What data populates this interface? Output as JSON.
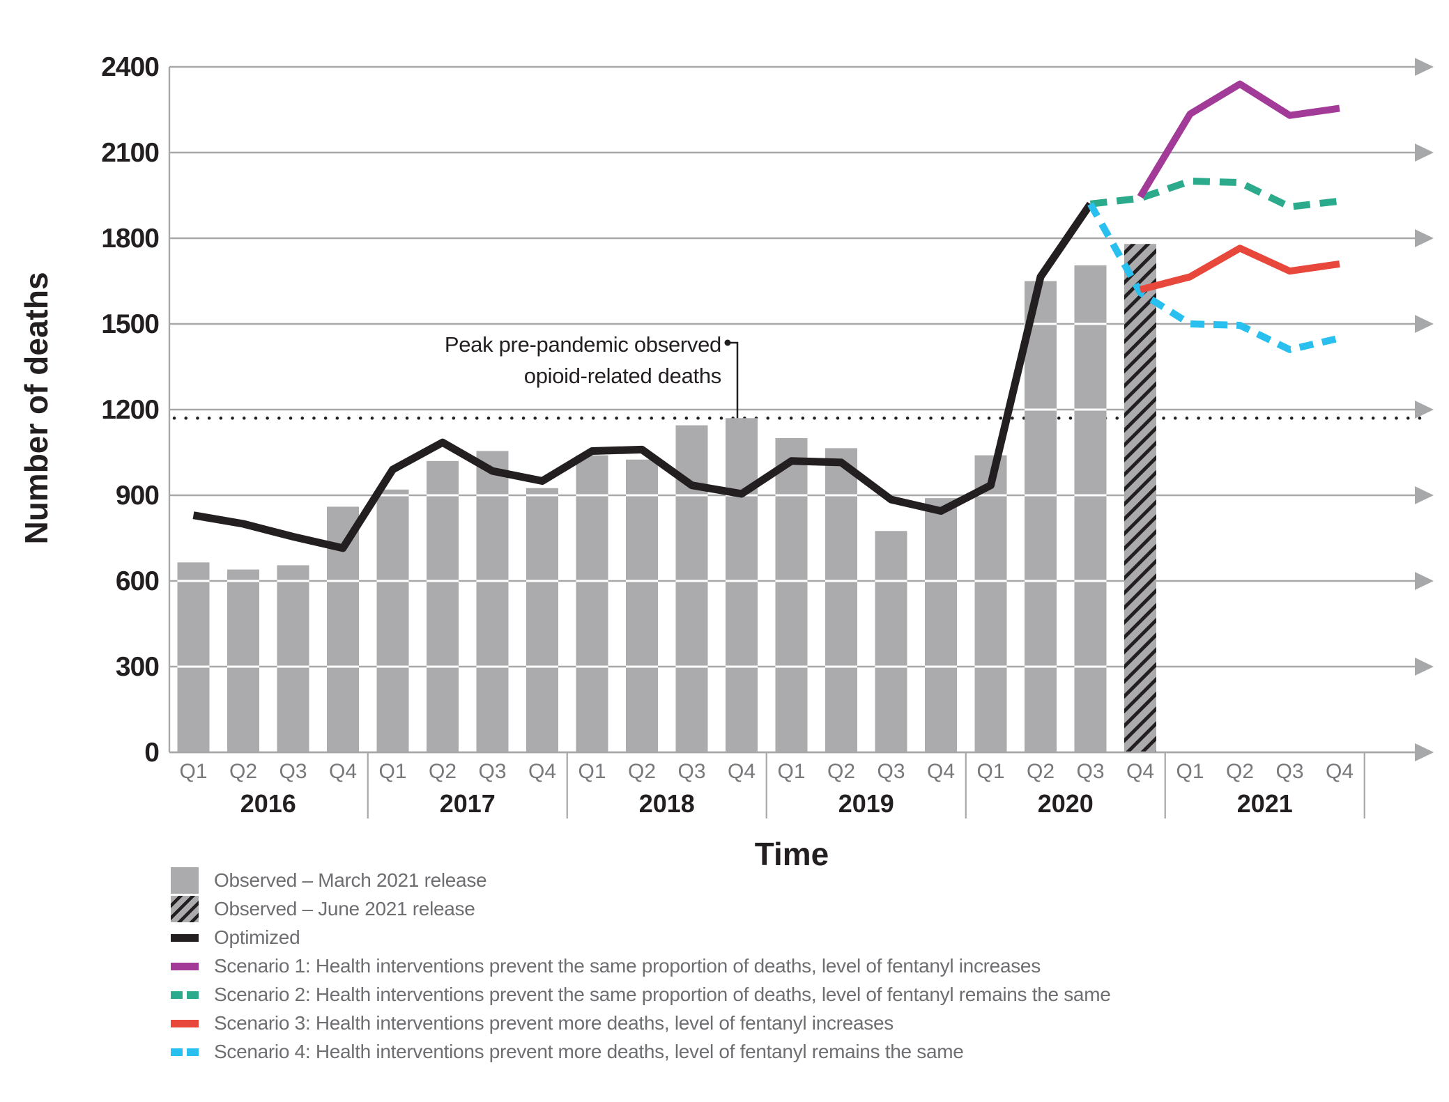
{
  "figure": {
    "y_axis_title": "Number of deaths",
    "x_axis_title": "Time",
    "annotation": {
      "line1": "Peak pre-pandemic observed",
      "line2": "opioid-related deaths"
    },
    "colors": {
      "bar_gray": "#ABABAD",
      "black": "#231F20",
      "purple": "#A23B97",
      "green": "#2BAB8C",
      "red": "#E8473B",
      "cyan": "#29BFEF",
      "grid": "#A7A8AA",
      "tick_gray": "#77787B",
      "legend_text": "#6D6E71",
      "white": "#FFFFFF"
    }
  },
  "chart_data": {
    "type": "combo-bar-line",
    "x_axis": {
      "years": [
        "2016",
        "2017",
        "2018",
        "2019",
        "2020",
        "2021"
      ],
      "quarters_per_year": [
        "Q1",
        "Q2",
        "Q3",
        "Q4"
      ]
    },
    "y_axis": {
      "label": "Number of deaths",
      "ylim": [
        0,
        2400
      ],
      "tick_step": 300,
      "ticks": [
        0,
        300,
        600,
        900,
        1200,
        1500,
        1800,
        2100,
        2400
      ],
      "grid": "horizontal gridlines ending in right-pointing arrows"
    },
    "reference_line": {
      "value": 1170,
      "style": "dotted",
      "meaning": "Peak pre-pandemic observed opioid-related deaths",
      "points_to_quarter": "2018 Q4"
    },
    "series": [
      {
        "name": "Observed - March 2021 release",
        "type": "bar",
        "color_key": "bar_gray",
        "start_quarter": "2016 Q1",
        "values": [
          665,
          640,
          655,
          860,
          920,
          1020,
          1055,
          925,
          1040,
          1025,
          1145,
          1170,
          1100,
          1065,
          775,
          890,
          1040,
          1650,
          1705
        ]
      },
      {
        "name": "Observed - June 2021 release",
        "type": "bar-hatched",
        "color_key": "bar_gray",
        "start_quarter": "2020 Q4",
        "values": [
          1780
        ]
      },
      {
        "name": "Optimized",
        "type": "line",
        "color_key": "black",
        "start_quarter": "2016 Q1",
        "values": [
          830,
          800,
          755,
          715,
          990,
          1085,
          985,
          950,
          1055,
          1060,
          935,
          905,
          1020,
          1015,
          885,
          845,
          935,
          1665,
          1920
        ]
      },
      {
        "name": "Scenario 1",
        "type": "line",
        "color_key": "purple",
        "start_quarter": "2020 Q4",
        "values": [
          1945,
          2235,
          2340,
          2230,
          2255
        ]
      },
      {
        "name": "Scenario 2",
        "type": "line-dashed",
        "color_key": "green",
        "start_quarter": "2020 Q3",
        "values": [
          1920,
          1940,
          2000,
          1995,
          1910,
          1930
        ]
      },
      {
        "name": "Scenario 3",
        "type": "line",
        "color_key": "red",
        "start_quarter": "2020 Q4",
        "values": [
          1620,
          1665,
          1765,
          1685,
          1710
        ]
      },
      {
        "name": "Scenario 4",
        "type": "line-dashed",
        "color_key": "cyan",
        "start_quarter": "2020 Q3",
        "values": [
          1920,
          1610,
          1500,
          1495,
          1410,
          1450
        ]
      }
    ]
  },
  "legend": {
    "items": [
      {
        "label": "Observed – March 2021 release",
        "swatch": "bar",
        "color_key": "bar_gray"
      },
      {
        "label": "Observed – June 2021 release",
        "swatch": "bar-hatched",
        "color_key": "bar_gray"
      },
      {
        "label": "Optimized",
        "swatch": "line",
        "color_key": "black"
      },
      {
        "label": "Scenario 1: Health interventions prevent the same proportion of deaths, level of fentanyl increases",
        "swatch": "line",
        "color_key": "purple"
      },
      {
        "label": "Scenario 2: Health interventions prevent the same proportion of deaths, level of fentanyl remains the same",
        "swatch": "line-dashed",
        "color_key": "green"
      },
      {
        "label": "Scenario 3: Health interventions prevent more deaths, level of fentanyl increases",
        "swatch": "line",
        "color_key": "red"
      },
      {
        "label": "Scenario 4: Health interventions prevent more deaths, level of fentanyl remains the same",
        "swatch": "line-dashed",
        "color_key": "cyan"
      }
    ]
  }
}
